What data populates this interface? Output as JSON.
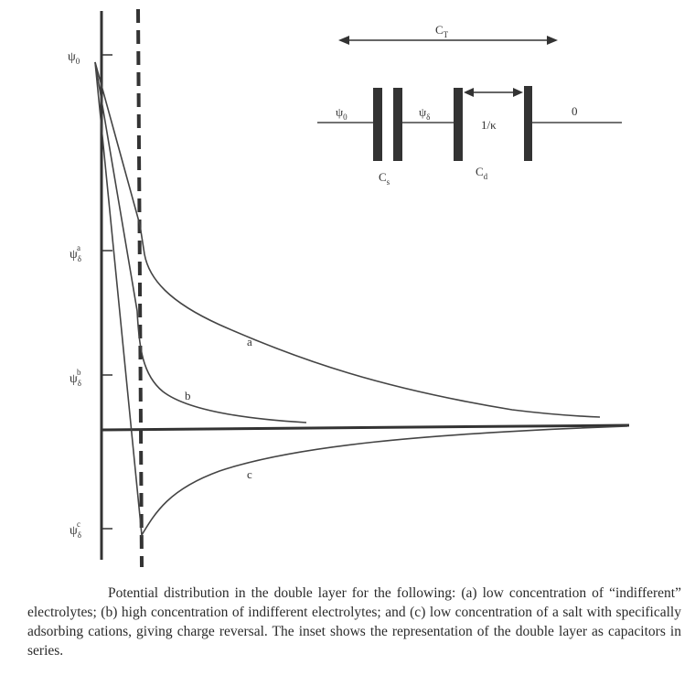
{
  "axis_labels": {
    "psi0": {
      "main": "ψ",
      "sub": "0"
    },
    "psi_delta_a": {
      "main": "ψ",
      "sub": "δ",
      "sup": "a"
    },
    "psi_delta_b": {
      "main": "ψ",
      "sub": "δ",
      "sup": "b"
    },
    "psi_delta_c": {
      "main": "ψ",
      "sub": "δ",
      "sup": "c"
    }
  },
  "curves": [
    {
      "label": "a",
      "description_key": "low concentration of indifferent electrolytes"
    },
    {
      "label": "b",
      "description_key": "high concentration of indifferent electrolytes"
    },
    {
      "label": "c",
      "description_key": "low concentration of salt with specifically adsorbing cations"
    }
  ],
  "inset": {
    "total_capacitance": {
      "main": "C",
      "sub": "T"
    },
    "psi0": {
      "main": "ψ",
      "sub": "0"
    },
    "psi_delta": {
      "main": "ψ",
      "sub": "δ"
    },
    "debye_length": "1/κ",
    "zero": "0",
    "stern_capacitance": {
      "main": "C",
      "sub": "s"
    },
    "diffuse_capacitance": {
      "main": "C",
      "sub": "d"
    }
  },
  "caption": "Potential distribution in the double layer for the following: (a) low concentration of “indifferent” electrolytes; (b) high concentration of indifferent electrolytes; and (c) low concentration of a salt with specifically adsorbing cations, giving charge reversal. The inset shows the representation of the double layer as capacitors in series."
}
